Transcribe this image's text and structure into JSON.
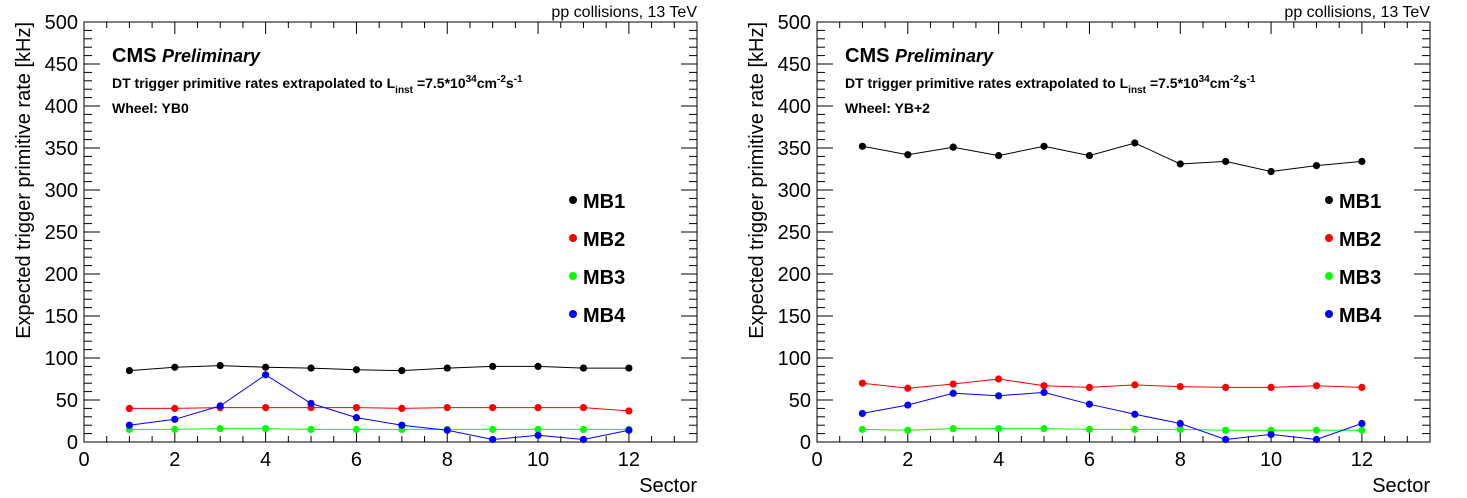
{
  "chart_data": [
    {
      "type": "line",
      "header": "pp collisions, 13 TeV",
      "cms_label": "CMS",
      "cms_sublabel": "Preliminary",
      "subtitle_prefix": "DT trigger primitive rates extrapolated to L",
      "subtitle_sub": "inst",
      "subtitle_mid": "=7.5*10",
      "subtitle_exp": "34",
      "subtitle_unit1": "cm",
      "subtitle_unit1_exp": "-2",
      "subtitle_unit2": "s",
      "subtitle_unit2_exp": "-1",
      "wheel_label": "Wheel: YB0",
      "xlabel": "Sector",
      "ylabel": "Expected trigger primitive rate [kHz]",
      "xlim": [
        0,
        13.5
      ],
      "ylim": [
        0,
        500
      ],
      "xticks": [
        0,
        2,
        4,
        6,
        8,
        10,
        12
      ],
      "yticks": [
        0,
        50,
        100,
        150,
        200,
        250,
        300,
        350,
        400,
        450,
        500
      ],
      "legend_position": "right",
      "x": [
        1,
        2,
        3,
        4,
        5,
        6,
        7,
        8,
        9,
        10,
        11,
        12
      ],
      "series": [
        {
          "name": "MB1",
          "color": "#000000",
          "values": [
            85,
            89,
            91,
            89,
            88,
            86,
            85,
            88,
            90,
            90,
            88,
            88
          ]
        },
        {
          "name": "MB2",
          "color": "#ff0000",
          "values": [
            40,
            40,
            41,
            41,
            41,
            41,
            40,
            41,
            41,
            41,
            41,
            37
          ]
        },
        {
          "name": "MB3",
          "color": "#00ff00",
          "values": [
            15,
            15,
            16,
            16,
            15,
            15,
            15,
            15,
            15,
            15,
            15,
            15
          ]
        },
        {
          "name": "MB4",
          "color": "#0000ff",
          "values": [
            20,
            27,
            43,
            80,
            46,
            29,
            20,
            14,
            3,
            8,
            3,
            14
          ]
        }
      ]
    },
    {
      "type": "line",
      "header": "pp collisions, 13 TeV",
      "cms_label": "CMS",
      "cms_sublabel": "Preliminary",
      "subtitle_prefix": "DT trigger primitive rates extrapolated to L",
      "subtitle_sub": "inst",
      "subtitle_mid": "=7.5*10",
      "subtitle_exp": "34",
      "subtitle_unit1": "cm",
      "subtitle_unit1_exp": "-2",
      "subtitle_unit2": "s",
      "subtitle_unit2_exp": "-1",
      "wheel_label": "Wheel: YB+2",
      "xlabel": "Sector",
      "ylabel": "Expected trigger primitive rate [kHz]",
      "xlim": [
        0,
        13.5
      ],
      "ylim": [
        0,
        500
      ],
      "xticks": [
        0,
        2,
        4,
        6,
        8,
        10,
        12
      ],
      "yticks": [
        0,
        50,
        100,
        150,
        200,
        250,
        300,
        350,
        400,
        450,
        500
      ],
      "legend_position": "right",
      "x": [
        1,
        2,
        3,
        4,
        5,
        6,
        7,
        8,
        9,
        10,
        11,
        12
      ],
      "series": [
        {
          "name": "MB1",
          "color": "#000000",
          "values": [
            352,
            342,
            351,
            341,
            352,
            341,
            356,
            331,
            334,
            322,
            329,
            334
          ]
        },
        {
          "name": "MB2",
          "color": "#ff0000",
          "values": [
            70,
            64,
            69,
            75,
            67,
            65,
            68,
            66,
            65,
            65,
            67,
            65
          ]
        },
        {
          "name": "MB3",
          "color": "#00ff00",
          "values": [
            15,
            14,
            16,
            16,
            16,
            15,
            15,
            15,
            14,
            14,
            14,
            14
          ]
        },
        {
          "name": "MB4",
          "color": "#0000ff",
          "values": [
            34,
            44,
            58,
            55,
            59,
            45,
            33,
            22,
            3,
            9,
            3,
            22
          ]
        }
      ]
    }
  ]
}
